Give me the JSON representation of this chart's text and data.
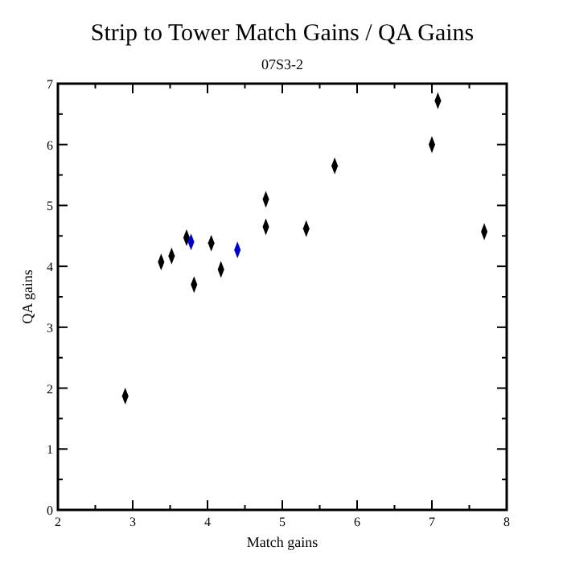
{
  "chart_data": {
    "type": "scatter",
    "title": "Strip to Tower Match Gains / QA Gains",
    "subtitle": "07S3-2",
    "xlabel": "Match gains",
    "ylabel": "QA gains",
    "xlim": [
      2,
      8
    ],
    "ylim": [
      0,
      7
    ],
    "xticks": [
      2,
      3,
      4,
      5,
      6,
      7,
      8
    ],
    "yticks": [
      0,
      1,
      2,
      3,
      4,
      5,
      6,
      7
    ],
    "grid": false,
    "marker": "diamond",
    "series": [
      {
        "color": "#000000",
        "x": [
          2.9,
          3.38,
          3.52,
          3.72,
          3.82,
          4.05,
          4.18,
          4.78,
          4.78,
          5.32,
          5.7,
          7.0,
          7.08,
          7.7
        ],
        "values": [
          1.87,
          4.07,
          4.17,
          4.47,
          3.7,
          4.38,
          3.95,
          5.1,
          4.65,
          4.62,
          5.65,
          6.0,
          6.72,
          4.57
        ]
      },
      {
        "color": "#0000cc",
        "x": [
          3.78,
          4.4
        ],
        "values": [
          4.4,
          4.27
        ]
      }
    ]
  }
}
